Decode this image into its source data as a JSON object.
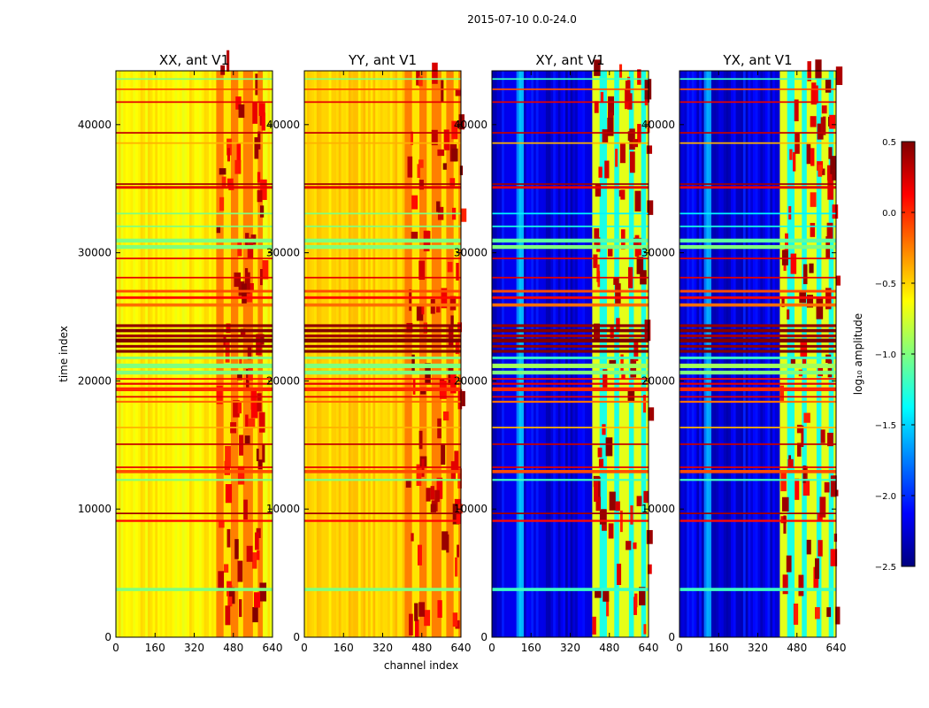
{
  "figure": {
    "suptitle": "2015-07-10 0.0-24.0",
    "xlabel": "channel index",
    "ylabel": "time index"
  },
  "colors": {
    "jet": [
      "#00007f",
      "#0000ff",
      "#007fff",
      "#00ffff",
      "#7fff7f",
      "#ffff00",
      "#ff7f00",
      "#ff0000",
      "#7f0000"
    ]
  },
  "chart_data": [
    {
      "type": "heatmap",
      "title": "XX, ant V1",
      "baseline": "low",
      "xlabel": "channel index",
      "ylabel": "time index",
      "xlim": [
        0,
        640
      ],
      "ylim": [
        0,
        44200
      ],
      "xticks": [
        0,
        160,
        320,
        480,
        640
      ],
      "yticks": [
        0,
        10000,
        20000,
        30000,
        40000
      ],
      "vmin": -2.5,
      "vmax": 0.5,
      "background_log10_amplitude": -0.6,
      "hot_channel_range": [
        410,
        600
      ]
    },
    {
      "type": "heatmap",
      "title": "YY, ant V1",
      "baseline": "low",
      "xlabel": "channel index",
      "ylabel": "time index",
      "xlim": [
        0,
        640
      ],
      "ylim": [
        0,
        44200
      ],
      "xticks": [
        0,
        160,
        320,
        480,
        640
      ],
      "yticks": [
        0,
        10000,
        20000,
        30000,
        40000
      ],
      "vmin": -2.5,
      "vmax": 0.5,
      "background_log10_amplitude": -0.5,
      "hot_channel_range": [
        410,
        640
      ]
    },
    {
      "type": "heatmap",
      "title": "XY, ant V1",
      "baseline": "deep",
      "xlabel": "channel index",
      "ylabel": "time index",
      "xlim": [
        0,
        640
      ],
      "ylim": [
        0,
        44200
      ],
      "xticks": [
        0,
        160,
        320,
        480,
        640
      ],
      "yticks": [
        0,
        10000,
        20000,
        30000,
        40000
      ],
      "vmin": -2.5,
      "vmax": 0.5,
      "background_log10_amplitude": -2.2,
      "hot_channel_range": [
        410,
        640
      ]
    },
    {
      "type": "heatmap",
      "title": "YX, ant V1",
      "baseline": "deep",
      "xlabel": "channel index",
      "ylabel": "time index",
      "xlim": [
        0,
        640
      ],
      "ylim": [
        0,
        44200
      ],
      "xticks": [
        0,
        160,
        320,
        480,
        640
      ],
      "yticks": [
        0,
        10000,
        20000,
        30000,
        40000
      ],
      "vmin": -2.5,
      "vmax": 0.5,
      "background_log10_amplitude": -2.2,
      "hot_channel_range": [
        410,
        640
      ]
    },
    {
      "type": "colorbar",
      "label": "log₁₀ amplitude",
      "vmin": -2.5,
      "vmax": 0.5,
      "ticks": [
        "0.5",
        "0.0",
        "−0.5",
        "−1.0",
        "−1.5",
        "−2.0",
        "−2.5"
      ],
      "tick_values": [
        0.5,
        0.0,
        -0.5,
        -1.0,
        -1.5,
        -2.0,
        -2.5
      ],
      "colormap": "jet"
    }
  ],
  "flag_bands": [
    {
      "t": 3600,
      "w": 250,
      "value": -1.2
    },
    {
      "t": 9000,
      "w": 160,
      "value": 0.1
    },
    {
      "t": 9600,
      "w": 120,
      "value": 0.4
    },
    {
      "t": 12200,
      "w": 150,
      "value": -1.2
    },
    {
      "t": 12800,
      "w": 250,
      "value": -0.1
    },
    {
      "t": 13200,
      "w": 120,
      "value": 0.2
    },
    {
      "t": 15000,
      "w": 120,
      "value": 0.3
    },
    {
      "t": 16300,
      "w": 120,
      "value": -0.4
    },
    {
      "t": 18300,
      "w": 150,
      "value": -0.2
    },
    {
      "t": 18700,
      "w": 120,
      "value": 0.2
    },
    {
      "t": 19200,
      "w": 300,
      "value": 0.0
    },
    {
      "t": 19700,
      "w": 150,
      "value": 0.2
    },
    {
      "t": 20100,
      "w": 120,
      "value": 0.1
    },
    {
      "t": 20500,
      "w": 300,
      "value": -1.0
    },
    {
      "t": 21000,
      "w": 350,
      "value": -0.9
    },
    {
      "t": 21700,
      "w": 200,
      "value": -1.2
    },
    {
      "t": 22200,
      "w": 220,
      "value": 0.5
    },
    {
      "t": 22600,
      "w": 200,
      "value": 0.45
    },
    {
      "t": 23000,
      "w": 300,
      "value": 0.5
    },
    {
      "t": 23400,
      "w": 220,
      "value": 0.4
    },
    {
      "t": 23800,
      "w": 250,
      "value": 0.5
    },
    {
      "t": 24200,
      "w": 220,
      "value": 0.45
    },
    {
      "t": 25800,
      "w": 250,
      "value": -0.2
    },
    {
      "t": 26400,
      "w": 200,
      "value": 0.1
    },
    {
      "t": 26900,
      "w": 200,
      "value": -0.1
    },
    {
      "t": 28000,
      "w": 120,
      "value": 0.2
    },
    {
      "t": 29500,
      "w": 120,
      "value": 0.2
    },
    {
      "t": 30300,
      "w": 300,
      "value": -1.0
    },
    {
      "t": 30800,
      "w": 300,
      "value": -1.1
    },
    {
      "t": 32000,
      "w": 120,
      "value": -1.3
    },
    {
      "t": 33000,
      "w": 120,
      "value": -1.4
    },
    {
      "t": 35000,
      "w": 200,
      "value": 0.2
    },
    {
      "t": 35300,
      "w": 120,
      "value": 0.4
    },
    {
      "t": 38500,
      "w": 120,
      "value": -0.4
    },
    {
      "t": 39300,
      "w": 120,
      "value": 0.3
    },
    {
      "t": 41700,
      "w": 120,
      "value": 0.2
    },
    {
      "t": 42700,
      "w": 120,
      "value": -0.1
    },
    {
      "t": 43500,
      "w": 120,
      "value": -1.2
    }
  ]
}
